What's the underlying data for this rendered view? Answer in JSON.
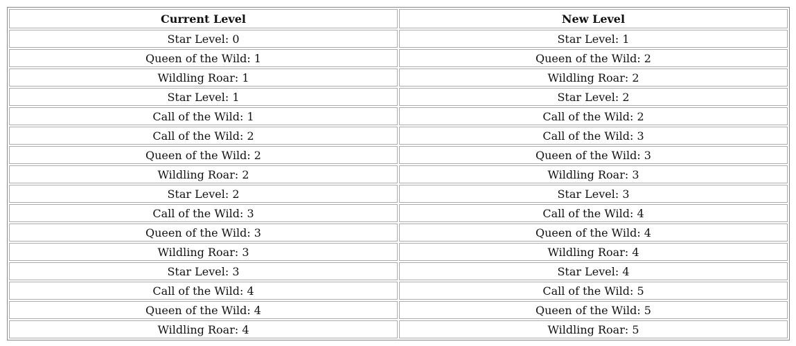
{
  "table": {
    "header": [
      "Current Level",
      "New Level"
    ],
    "rows": [
      [
        "Star Level: 0",
        "Star Level: 1"
      ],
      [
        "Queen of the Wild: 1",
        "Queen of the Wild: 2"
      ],
      [
        "Wildling Roar: 1",
        "Wildling Roar: 2"
      ],
      [
        "Star Level: 1",
        "Star Level: 2"
      ],
      [
        "Call of the Wild: 1",
        "Call of the Wild: 2"
      ],
      [
        "Call of the Wild: 2",
        "Call of the Wild: 3"
      ],
      [
        "Queen of the Wild: 2",
        "Queen of the Wild: 3"
      ],
      [
        "Wildling Roar: 2",
        "Wildling Roar: 3"
      ],
      [
        "Star Level: 2",
        "Star Level: 3"
      ],
      [
        "Call of the Wild: 3",
        "Call of the Wild: 4"
      ],
      [
        "Queen of the Wild: 3",
        "Queen of the Wild: 4"
      ],
      [
        "Wildling Roar: 3",
        "Wildling Roar: 4"
      ],
      [
        "Star Level: 3",
        "Star Level: 4"
      ],
      [
        "Call of the Wild: 4",
        "Call of the Wild: 5"
      ],
      [
        "Queen of the Wild: 4",
        "Queen of the Wild: 5"
      ],
      [
        "Wildling Roar: 4",
        "Wildling Roar: 5"
      ]
    ]
  }
}
